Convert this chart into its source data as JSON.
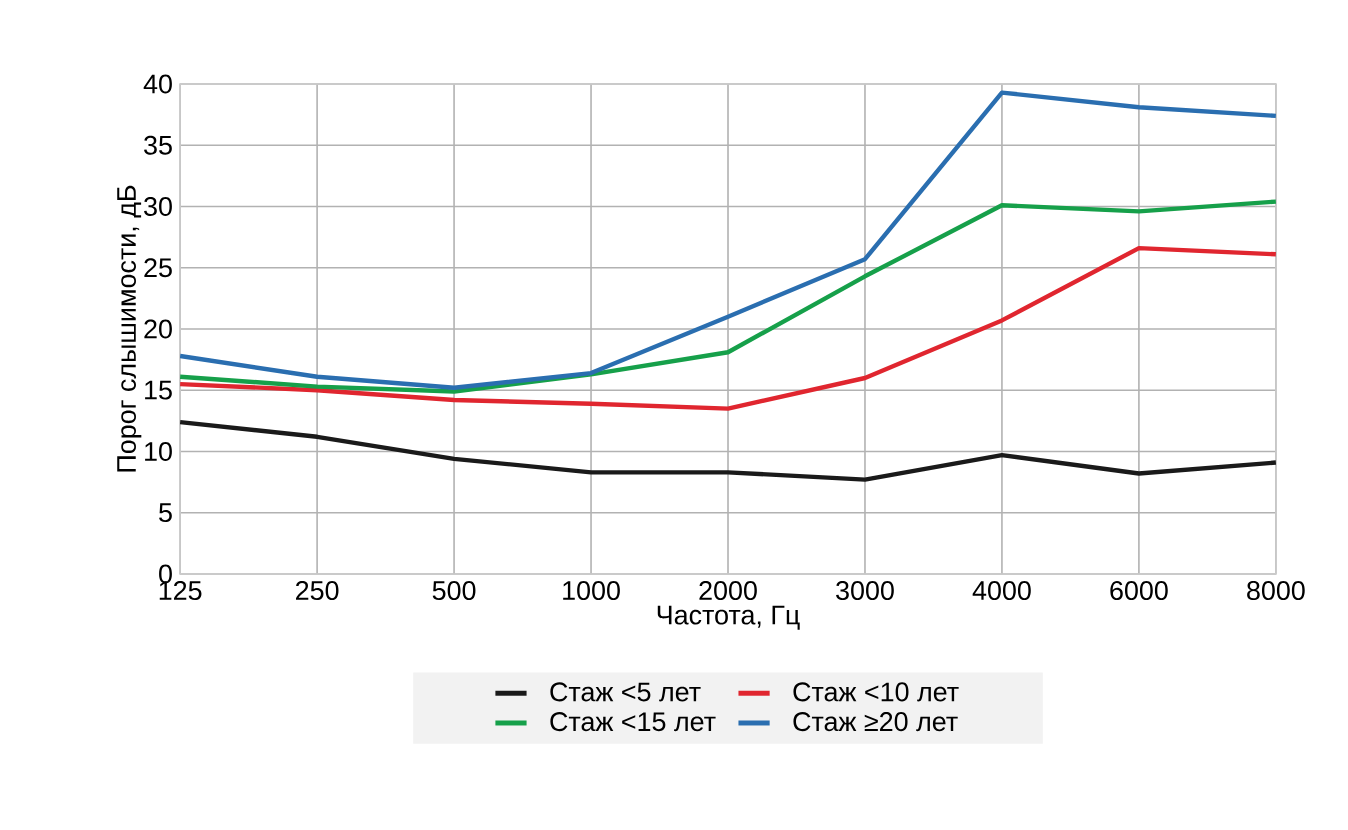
{
  "chart_data": {
    "type": "line",
    "xlabel": "Частота, Гц",
    "ylabel": "Порог слышимости, дБ",
    "categories": [
      "125",
      "250",
      "500",
      "1000",
      "2000",
      "3000",
      "4000",
      "6000",
      "8000"
    ],
    "series": [
      {
        "name": "Стаж <5 лет",
        "color": "#1a1a1a",
        "values": [
          12.4,
          11.2,
          9.4,
          8.3,
          8.3,
          7.7,
          9.7,
          8.2,
          9.1
        ]
      },
      {
        "name": "Стаж <10 лет",
        "color": "#e0262f",
        "values": [
          15.5,
          15.0,
          14.2,
          13.9,
          13.5,
          16.0,
          20.7,
          26.6,
          26.1
        ]
      },
      {
        "name": "Стаж <15 лет",
        "color": "#16a04a",
        "values": [
          16.1,
          15.3,
          14.9,
          16.3,
          18.1,
          24.3,
          30.1,
          29.6,
          30.4
        ]
      },
      {
        "name": "Стаж ≥20 лет",
        "color": "#2a6eb0",
        "values": [
          17.8,
          16.1,
          15.2,
          16.4,
          21.0,
          25.7,
          39.3,
          38.1,
          37.4
        ]
      }
    ],
    "ylim": [
      0,
      40
    ],
    "yticks": [
      0,
      5,
      10,
      15,
      20,
      25,
      30,
      35,
      40
    ],
    "grid": true,
    "legend": "bottom"
  }
}
